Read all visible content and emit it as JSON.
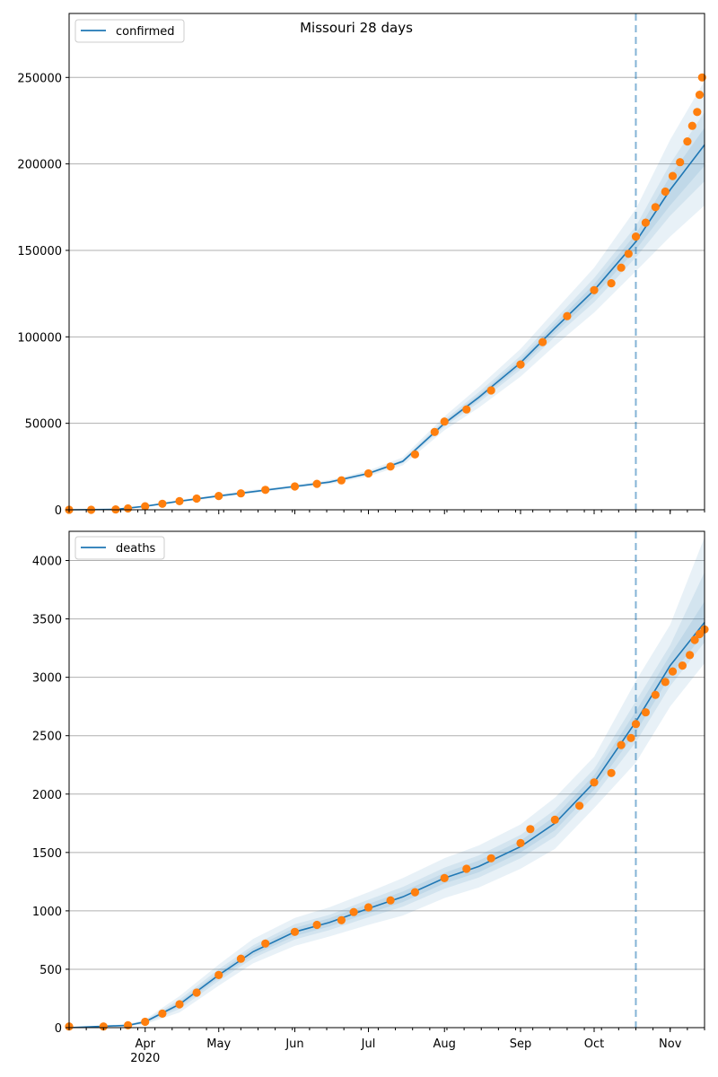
{
  "figure_title": "Missouri 28 days",
  "colors": {
    "model_line": "#1f77b4",
    "observed": "#ff7f0e",
    "band": "#1f77b4",
    "forecast_marker": "#1f77b4",
    "grid": "#b0b0b0"
  },
  "x_axis": {
    "start": "2020-03-01",
    "end": "2020-11-15",
    "year_label": "2020",
    "month_labels": [
      {
        "label": "Apr",
        "date": "2020-04-01"
      },
      {
        "label": "May",
        "date": "2020-05-01"
      },
      {
        "label": "Jun",
        "date": "2020-06-01"
      },
      {
        "label": "Jul",
        "date": "2020-07-01"
      },
      {
        "label": "Aug",
        "date": "2020-08-01"
      },
      {
        "label": "Sep",
        "date": "2020-09-01"
      },
      {
        "label": "Oct",
        "date": "2020-10-01"
      },
      {
        "label": "Nov",
        "date": "2020-11-01"
      }
    ],
    "forecast_date": "2020-10-18"
  },
  "chart_data": [
    {
      "type": "line",
      "legend": "confirmed",
      "legend_position": "upper-left",
      "grid": "horizontal",
      "ylim": [
        0,
        287000
      ],
      "yticks": [
        0,
        50000,
        100000,
        150000,
        200000,
        250000
      ],
      "ytick_labels": [
        "0",
        "50000",
        "100000",
        "150000",
        "200000",
        "250000"
      ],
      "model": {
        "x": [
          "2020-03-01",
          "2020-03-20",
          "2020-04-01",
          "2020-04-15",
          "2020-05-01",
          "2020-05-15",
          "2020-06-01",
          "2020-06-15",
          "2020-07-01",
          "2020-07-15",
          "2020-08-01",
          "2020-08-15",
          "2020-09-01",
          "2020-09-15",
          "2020-10-01",
          "2020-10-18",
          "2020-11-01",
          "2020-11-15"
        ],
        "y": [
          0,
          200,
          2000,
          5000,
          8000,
          10500,
          13500,
          16000,
          21000,
          28000,
          50000,
          65000,
          85000,
          105000,
          127000,
          155000,
          185000,
          211000
        ],
        "bands": [
          {
            "lo": [
              0,
              100,
              1500,
              4300,
              7100,
              9500,
              12500,
              14800,
              19300,
              25700,
              46000,
              59000,
              77000,
              95000,
              114000,
              138000,
              158000,
              176000
            ],
            "hi": [
              0,
              300,
              2500,
              5700,
              8900,
              11500,
              14500,
              17200,
              22700,
              30300,
              54000,
              71000,
              93000,
              115000,
              140000,
              174000,
              214000,
              248000
            ]
          },
          {
            "lo": [
              0,
              140,
              1700,
              4600,
              7500,
              10000,
              13000,
              15400,
              20200,
              27000,
              48000,
              62000,
              81000,
              100000,
              120000,
              146000,
              170000,
              190000
            ],
            "hi": [
              0,
              260,
              2300,
              5400,
              8500,
              11000,
              14000,
              16600,
              21800,
              29000,
              52000,
              68000,
              89000,
              110000,
              134000,
              164000,
              200000,
              230000
            ]
          },
          {
            "lo": [
              0,
              170,
              1850,
              4800,
              7750,
              10250,
              13250,
              15700,
              20600,
              27500,
              49000,
              63500,
              83000,
              102500,
              123500,
              150500,
              176000,
              199000
            ],
            "hi": [
              0,
              230,
              2150,
              5200,
              8250,
              10750,
              13750,
              16300,
              21400,
              28500,
              51000,
              66500,
              87000,
              107500,
              130500,
              159500,
              193000,
              221000
            ]
          }
        ]
      },
      "observed": {
        "x": [
          "2020-03-01",
          "2020-03-10",
          "2020-03-20",
          "2020-03-25",
          "2020-04-01",
          "2020-04-08",
          "2020-04-15",
          "2020-04-22",
          "2020-05-01",
          "2020-05-10",
          "2020-05-20",
          "2020-06-01",
          "2020-06-10",
          "2020-06-20",
          "2020-07-01",
          "2020-07-10",
          "2020-07-20",
          "2020-07-28",
          "2020-08-01",
          "2020-08-10",
          "2020-08-20",
          "2020-09-01",
          "2020-09-10",
          "2020-09-20",
          "2020-10-01",
          "2020-10-08",
          "2020-10-12",
          "2020-10-15",
          "2020-10-18",
          "2020-10-22",
          "2020-10-26",
          "2020-10-30",
          "2020-11-02",
          "2020-11-05",
          "2020-11-08",
          "2020-11-10",
          "2020-11-12",
          "2020-11-13",
          "2020-11-14"
        ],
        "y": [
          0,
          0,
          200,
          800,
          2000,
          3500,
          5000,
          6500,
          8000,
          9500,
          11500,
          13500,
          15000,
          17000,
          21000,
          25000,
          32000,
          45000,
          51000,
          58000,
          69000,
          84000,
          97000,
          112000,
          127000,
          131000,
          140000,
          148000,
          158000,
          166000,
          175000,
          184000,
          193000,
          201000,
          213000,
          222000,
          230000,
          240000,
          250000
        ]
      }
    },
    {
      "type": "line",
      "legend": "deaths",
      "legend_position": "upper-left",
      "grid": "horizontal",
      "ylim": [
        0,
        4250
      ],
      "yticks": [
        0,
        500,
        1000,
        1500,
        2000,
        2500,
        3000,
        3500,
        4000
      ],
      "ytick_labels": [
        "0",
        "500",
        "1000",
        "1500",
        "2000",
        "2500",
        "3000",
        "3500",
        "4000"
      ],
      "model": {
        "x": [
          "2020-03-01",
          "2020-03-25",
          "2020-04-01",
          "2020-04-15",
          "2020-05-01",
          "2020-05-15",
          "2020-06-01",
          "2020-06-15",
          "2020-07-01",
          "2020-07-15",
          "2020-08-01",
          "2020-08-15",
          "2020-09-01",
          "2020-09-15",
          "2020-10-01",
          "2020-10-18",
          "2020-11-01",
          "2020-11-15"
        ],
        "y": [
          0,
          20,
          50,
          200,
          450,
          650,
          820,
          900,
          1020,
          1120,
          1280,
          1380,
          1550,
          1750,
          2100,
          2620,
          3100,
          3470
        ],
        "bands": [
          {
            "lo": [
              0,
              10,
              30,
              130,
              360,
              550,
              700,
              780,
              880,
              960,
              1110,
              1200,
              1360,
              1530,
              1880,
              2270,
              2750,
              3120
            ],
            "hi": [
              0,
              30,
              70,
              270,
              540,
              760,
              940,
              1030,
              1160,
              1280,
              1450,
              1560,
              1740,
              1970,
              2320,
              2970,
              3450,
              4200
            ]
          },
          {
            "lo": [
              0,
              14,
              38,
              160,
              400,
              595,
              755,
              835,
              945,
              1035,
              1190,
              1285,
              1450,
              1635,
              1985,
              2445,
              2925,
              3300
            ],
            "hi": [
              0,
              26,
              62,
              240,
              500,
              705,
              885,
              965,
              1095,
              1205,
              1370,
              1475,
              1650,
              1865,
              2215,
              2795,
              3275,
              3900
            ]
          },
          {
            "lo": [
              0,
              17,
              44,
              180,
              425,
              620,
              785,
              865,
              980,
              1075,
              1235,
              1330,
              1500,
              1690,
              2040,
              2530,
              3010,
              3380
            ],
            "hi": [
              0,
              23,
              56,
              220,
              475,
              680,
              855,
              935,
              1060,
              1165,
              1325,
              1430,
              1600,
              1810,
              2160,
              2710,
              3190,
              3650
            ]
          }
        ]
      },
      "observed": {
        "x": [
          "2020-03-01",
          "2020-03-15",
          "2020-03-25",
          "2020-04-01",
          "2020-04-08",
          "2020-04-15",
          "2020-04-22",
          "2020-05-01",
          "2020-05-10",
          "2020-05-20",
          "2020-06-01",
          "2020-06-10",
          "2020-06-20",
          "2020-06-25",
          "2020-07-01",
          "2020-07-10",
          "2020-07-20",
          "2020-08-01",
          "2020-08-10",
          "2020-08-20",
          "2020-09-01",
          "2020-09-05",
          "2020-09-15",
          "2020-09-25",
          "2020-10-01",
          "2020-10-08",
          "2020-10-12",
          "2020-10-16",
          "2020-10-18",
          "2020-10-22",
          "2020-10-26",
          "2020-10-30",
          "2020-11-02",
          "2020-11-06",
          "2020-11-09",
          "2020-11-11",
          "2020-11-13",
          "2020-11-15"
        ],
        "y": [
          10,
          10,
          20,
          50,
          120,
          200,
          300,
          450,
          590,
          720,
          820,
          880,
          920,
          990,
          1030,
          1090,
          1160,
          1280,
          1360,
          1450,
          1580,
          1700,
          1780,
          1900,
          2100,
          2180,
          2420,
          2480,
          2600,
          2700,
          2850,
          2960,
          3050,
          3100,
          3190,
          3320,
          3370,
          3410
        ]
      }
    }
  ]
}
